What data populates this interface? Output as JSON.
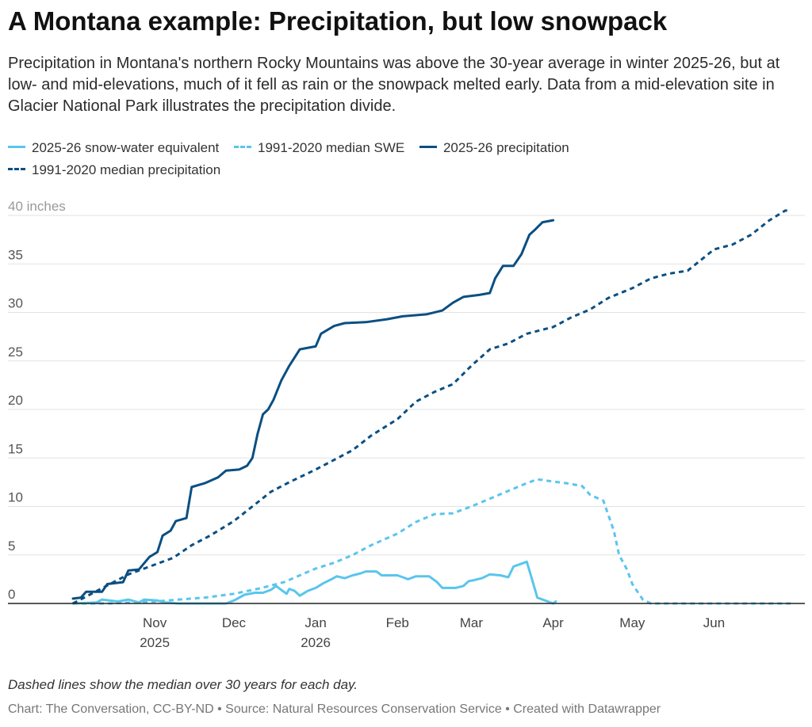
{
  "title": "A Montana example: Precipitation, but low snowpack",
  "subtitle": "Precipitation in Montana's northern Rocky Mountains was above the 30-year average in winter 2025-26, but at low- and mid-elevations, much of it fell as rain or the snowpack melted early. Data from a mid-elevation site in Glacier National Park illustrates the precipitation divide.",
  "footnote": "Dashed lines show the median over 30 years for each day.",
  "credit": "Chart: The Conversation, CC-BY-ND • Source: Natural Resources Conservation Service • Created with Datawrapper",
  "colors": {
    "light_blue": "#5ac5ec",
    "dark_blue": "#0b4f82",
    "grid": "#e2e2e2",
    "axis": "#222222"
  },
  "chart_data": {
    "type": "line",
    "x_unit": "date",
    "x_range": [
      "2025-10-01",
      "2026-06-30"
    ],
    "ylim": [
      0,
      40
    ],
    "y_ticks": [
      {
        "value": 0,
        "label": "0"
      },
      {
        "value": 5,
        "label": "5"
      },
      {
        "value": 10,
        "label": "10"
      },
      {
        "value": 15,
        "label": "15"
      },
      {
        "value": 20,
        "label": "20"
      },
      {
        "value": 25,
        "label": "25"
      },
      {
        "value": 30,
        "label": "30"
      },
      {
        "value": 35,
        "label": "35"
      },
      {
        "value": 40,
        "label": "40 inches"
      }
    ],
    "x_ticks": [
      {
        "date": "2025-11-01",
        "label": "Nov",
        "sublabel": "2025"
      },
      {
        "date": "2025-12-01",
        "label": "Dec",
        "sublabel": ""
      },
      {
        "date": "2026-01-01",
        "label": "Jan",
        "sublabel": "2026"
      },
      {
        "date": "2026-02-01",
        "label": "Feb",
        "sublabel": ""
      },
      {
        "date": "2026-03-01",
        "label": "Mar",
        "sublabel": ""
      },
      {
        "date": "2026-04-01",
        "label": "Apr",
        "sublabel": ""
      },
      {
        "date": "2026-05-01",
        "label": "May",
        "sublabel": ""
      },
      {
        "date": "2026-06-01",
        "label": "Jun",
        "sublabel": ""
      }
    ],
    "grid": true,
    "legend_position": "top",
    "series": [
      {
        "name": "2025-26 snow-water equivalent",
        "color": "#5ac5ec",
        "dashed": false,
        "points": [
          [
            "2025-10-01",
            0
          ],
          [
            "2025-10-10",
            0.1
          ],
          [
            "2025-10-12",
            0.4
          ],
          [
            "2025-10-18",
            0.2
          ],
          [
            "2025-10-22",
            0.4
          ],
          [
            "2025-10-26",
            0.1
          ],
          [
            "2025-10-28",
            0.4
          ],
          [
            "2025-11-02",
            0.3
          ],
          [
            "2025-11-05",
            0.1
          ],
          [
            "2025-11-10",
            0
          ],
          [
            "2025-11-20",
            0
          ],
          [
            "2025-11-28",
            0
          ],
          [
            "2025-12-01",
            0.3
          ],
          [
            "2025-12-05",
            0.9
          ],
          [
            "2025-12-09",
            1.1
          ],
          [
            "2025-12-12",
            1.1
          ],
          [
            "2025-12-15",
            1.4
          ],
          [
            "2025-12-17",
            1.8
          ],
          [
            "2025-12-19",
            1.4
          ],
          [
            "2025-12-21",
            1.0
          ],
          [
            "2025-12-22",
            1.5
          ],
          [
            "2025-12-24",
            1.3
          ],
          [
            "2025-12-26",
            0.8
          ],
          [
            "2025-12-29",
            1.3
          ],
          [
            "2026-01-01",
            1.6
          ],
          [
            "2026-01-04",
            2.1
          ],
          [
            "2026-01-07",
            2.5
          ],
          [
            "2026-01-09",
            2.8
          ],
          [
            "2026-01-12",
            2.6
          ],
          [
            "2026-01-15",
            2.9
          ],
          [
            "2026-01-18",
            3.1
          ],
          [
            "2026-01-20",
            3.3
          ],
          [
            "2026-01-24",
            3.3
          ],
          [
            "2026-01-26",
            2.9
          ],
          [
            "2026-02-01",
            2.9
          ],
          [
            "2026-02-03",
            2.7
          ],
          [
            "2026-02-05",
            2.5
          ],
          [
            "2026-02-08",
            2.8
          ],
          [
            "2026-02-13",
            2.8
          ],
          [
            "2026-02-16",
            2.2
          ],
          [
            "2026-02-18",
            1.6
          ],
          [
            "2026-02-23",
            1.6
          ],
          [
            "2026-02-26",
            1.8
          ],
          [
            "2026-02-28",
            2.3
          ],
          [
            "2026-03-02",
            2.4
          ],
          [
            "2026-03-05",
            2.6
          ],
          [
            "2026-03-08",
            3.0
          ],
          [
            "2026-03-12",
            2.9
          ],
          [
            "2026-03-15",
            2.7
          ],
          [
            "2026-03-17",
            3.8
          ],
          [
            "2026-03-20",
            4.1
          ],
          [
            "2026-03-22",
            4.3
          ],
          [
            "2026-03-24",
            2.5
          ],
          [
            "2026-03-26",
            0.6
          ],
          [
            "2026-03-29",
            0.3
          ],
          [
            "2026-04-01",
            0
          ],
          [
            "2026-04-02",
            0.2
          ]
        ]
      },
      {
        "name": "1991-2020 median SWE",
        "color": "#5ac5ec",
        "dashed": true,
        "points": [
          [
            "2025-10-01",
            0
          ],
          [
            "2025-10-15",
            0
          ],
          [
            "2025-11-01",
            0.2
          ],
          [
            "2025-11-10",
            0.4
          ],
          [
            "2025-11-20",
            0.6
          ],
          [
            "2025-12-01",
            1.0
          ],
          [
            "2025-12-10",
            1.5
          ],
          [
            "2025-12-20",
            2.2
          ],
          [
            "2026-01-01",
            3.6
          ],
          [
            "2026-01-08",
            4.2
          ],
          [
            "2026-01-15",
            5.0
          ],
          [
            "2026-01-22",
            6.0
          ],
          [
            "2026-02-01",
            7.2
          ],
          [
            "2026-02-08",
            8.4
          ],
          [
            "2026-02-15",
            9.2
          ],
          [
            "2026-02-22",
            9.3
          ],
          [
            "2026-03-01",
            10.0
          ],
          [
            "2026-03-08",
            10.8
          ],
          [
            "2026-03-15",
            11.6
          ],
          [
            "2026-03-22",
            12.4
          ],
          [
            "2026-03-26",
            12.8
          ],
          [
            "2026-03-31",
            12.6
          ],
          [
            "2026-04-06",
            12.4
          ],
          [
            "2026-04-12",
            12.1
          ],
          [
            "2026-04-15",
            11.2
          ],
          [
            "2026-04-20",
            10.6
          ],
          [
            "2026-04-24",
            7.5
          ],
          [
            "2026-04-26",
            5.0
          ],
          [
            "2026-04-29",
            3.5
          ],
          [
            "2026-05-01",
            2.0
          ],
          [
            "2026-05-05",
            0.4
          ],
          [
            "2026-05-08",
            0
          ],
          [
            "2026-06-30",
            0
          ]
        ]
      },
      {
        "name": "2025-26 precipitation",
        "color": "#0b4f82",
        "dashed": false,
        "points": [
          [
            "2025-10-01",
            0.5
          ],
          [
            "2025-10-04",
            0.6
          ],
          [
            "2025-10-06",
            1.2
          ],
          [
            "2025-10-12",
            1.2
          ],
          [
            "2025-10-14",
            2.0
          ],
          [
            "2025-10-20",
            2.2
          ],
          [
            "2025-10-22",
            3.4
          ],
          [
            "2025-10-26",
            3.5
          ],
          [
            "2025-10-30",
            4.8
          ],
          [
            "2025-11-02",
            5.3
          ],
          [
            "2025-11-04",
            7.0
          ],
          [
            "2025-11-07",
            7.5
          ],
          [
            "2025-11-09",
            8.5
          ],
          [
            "2025-11-13",
            8.8
          ],
          [
            "2025-11-15",
            12.0
          ],
          [
            "2025-11-20",
            12.4
          ],
          [
            "2025-11-25",
            13.0
          ],
          [
            "2025-11-28",
            13.7
          ],
          [
            "2025-12-03",
            13.8
          ],
          [
            "2025-12-06",
            14.2
          ],
          [
            "2025-12-08",
            15.0
          ],
          [
            "2025-12-10",
            17.5
          ],
          [
            "2025-12-12",
            19.5
          ],
          [
            "2025-12-14",
            20.0
          ],
          [
            "2025-12-16",
            21.0
          ],
          [
            "2025-12-19",
            23.0
          ],
          [
            "2025-12-22",
            24.5
          ],
          [
            "2025-12-26",
            26.2
          ],
          [
            "2026-01-01",
            26.5
          ],
          [
            "2026-01-03",
            27.8
          ],
          [
            "2026-01-08",
            28.6
          ],
          [
            "2026-01-12",
            28.9
          ],
          [
            "2026-01-20",
            29.0
          ],
          [
            "2026-01-28",
            29.3
          ],
          [
            "2026-02-03",
            29.6
          ],
          [
            "2026-02-12",
            29.8
          ],
          [
            "2026-02-18",
            30.2
          ],
          [
            "2026-02-22",
            31.0
          ],
          [
            "2026-02-26",
            31.6
          ],
          [
            "2026-03-04",
            31.8
          ],
          [
            "2026-03-08",
            32.0
          ],
          [
            "2026-03-10",
            33.5
          ],
          [
            "2026-03-13",
            34.8
          ],
          [
            "2026-03-17",
            34.8
          ],
          [
            "2026-03-20",
            36.0
          ],
          [
            "2026-03-23",
            38.0
          ],
          [
            "2026-03-25",
            38.5
          ],
          [
            "2026-03-28",
            39.3
          ],
          [
            "2026-04-01",
            39.5
          ]
        ]
      },
      {
        "name": "1991-2020 median precipitation",
        "color": "#0b4f82",
        "dashed": true,
        "points": [
          [
            "2025-10-01",
            0
          ],
          [
            "2025-10-08",
            1.0
          ],
          [
            "2025-10-15",
            2.0
          ],
          [
            "2025-10-22",
            3.0
          ],
          [
            "2025-11-01",
            4.0
          ],
          [
            "2025-11-08",
            4.7
          ],
          [
            "2025-11-15",
            6.0
          ],
          [
            "2025-11-22",
            7.0
          ],
          [
            "2025-12-01",
            8.5
          ],
          [
            "2025-12-08",
            10.0
          ],
          [
            "2025-12-15",
            11.5
          ],
          [
            "2025-12-22",
            12.5
          ],
          [
            "2026-01-01",
            13.8
          ],
          [
            "2026-01-08",
            14.8
          ],
          [
            "2026-01-15",
            15.8
          ],
          [
            "2026-01-22",
            17.3
          ],
          [
            "2026-02-01",
            19.0
          ],
          [
            "2026-02-08",
            20.8
          ],
          [
            "2026-02-15",
            21.8
          ],
          [
            "2026-02-22",
            22.6
          ],
          [
            "2026-03-01",
            24.5
          ],
          [
            "2026-03-08",
            26.2
          ],
          [
            "2026-03-15",
            26.8
          ],
          [
            "2026-03-22",
            27.8
          ],
          [
            "2026-04-01",
            28.5
          ],
          [
            "2026-04-08",
            29.5
          ],
          [
            "2026-04-15",
            30.3
          ],
          [
            "2026-04-22",
            31.5
          ],
          [
            "2026-05-01",
            32.5
          ],
          [
            "2026-05-08",
            33.5
          ],
          [
            "2026-05-15",
            34.0
          ],
          [
            "2026-05-22",
            34.3
          ],
          [
            "2026-06-01",
            36.5
          ],
          [
            "2026-06-08",
            37.0
          ],
          [
            "2026-06-15",
            38.0
          ],
          [
            "2026-06-22",
            39.5
          ],
          [
            "2026-06-28",
            40.5
          ],
          [
            "2026-06-30",
            40.5
          ]
        ]
      }
    ]
  }
}
